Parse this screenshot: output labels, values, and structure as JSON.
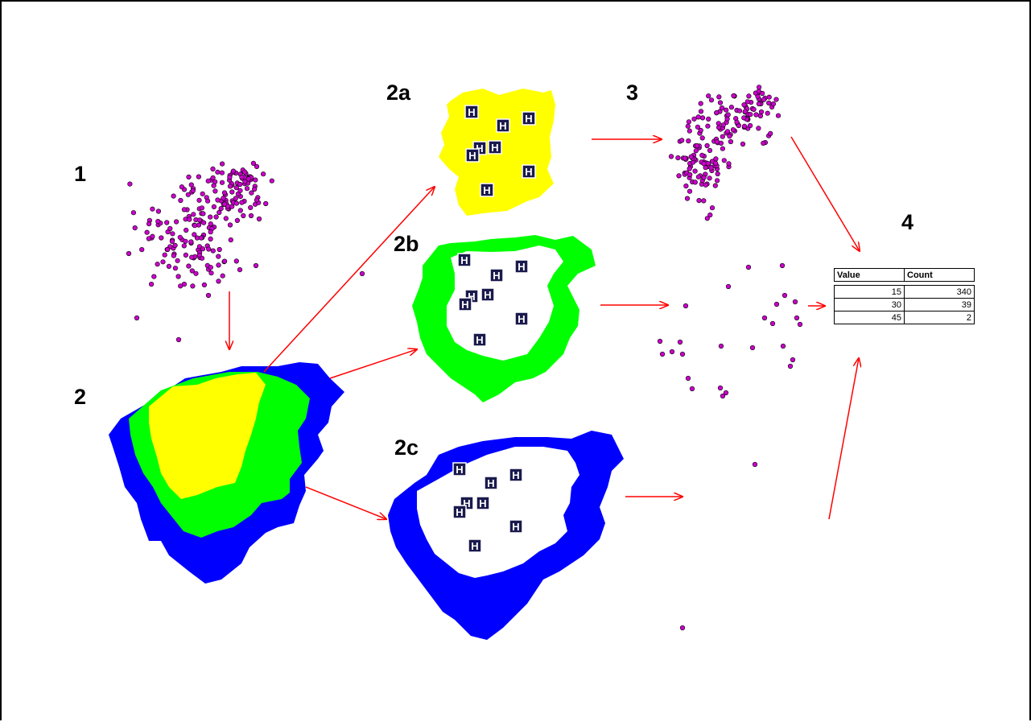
{
  "labels": {
    "step1": "1",
    "step2": "2",
    "step2a": "2a",
    "step2b": "2b",
    "step2c": "2c",
    "step3": "3",
    "step4": "4"
  },
  "hospital_glyph": "H",
  "colors": {
    "ring_15": "#ffff00",
    "ring_30": "#00ff00",
    "ring_45": "#0000ff",
    "points": "#cc00cc",
    "arrows": "#ff0000",
    "hospital_fill": "#1a1a4d"
  },
  "table": {
    "headers": [
      "Value",
      "Count"
    ],
    "rows": [
      [
        "15",
        "340"
      ],
      [
        "30",
        "39"
      ],
      [
        "45",
        "2"
      ]
    ]
  }
}
